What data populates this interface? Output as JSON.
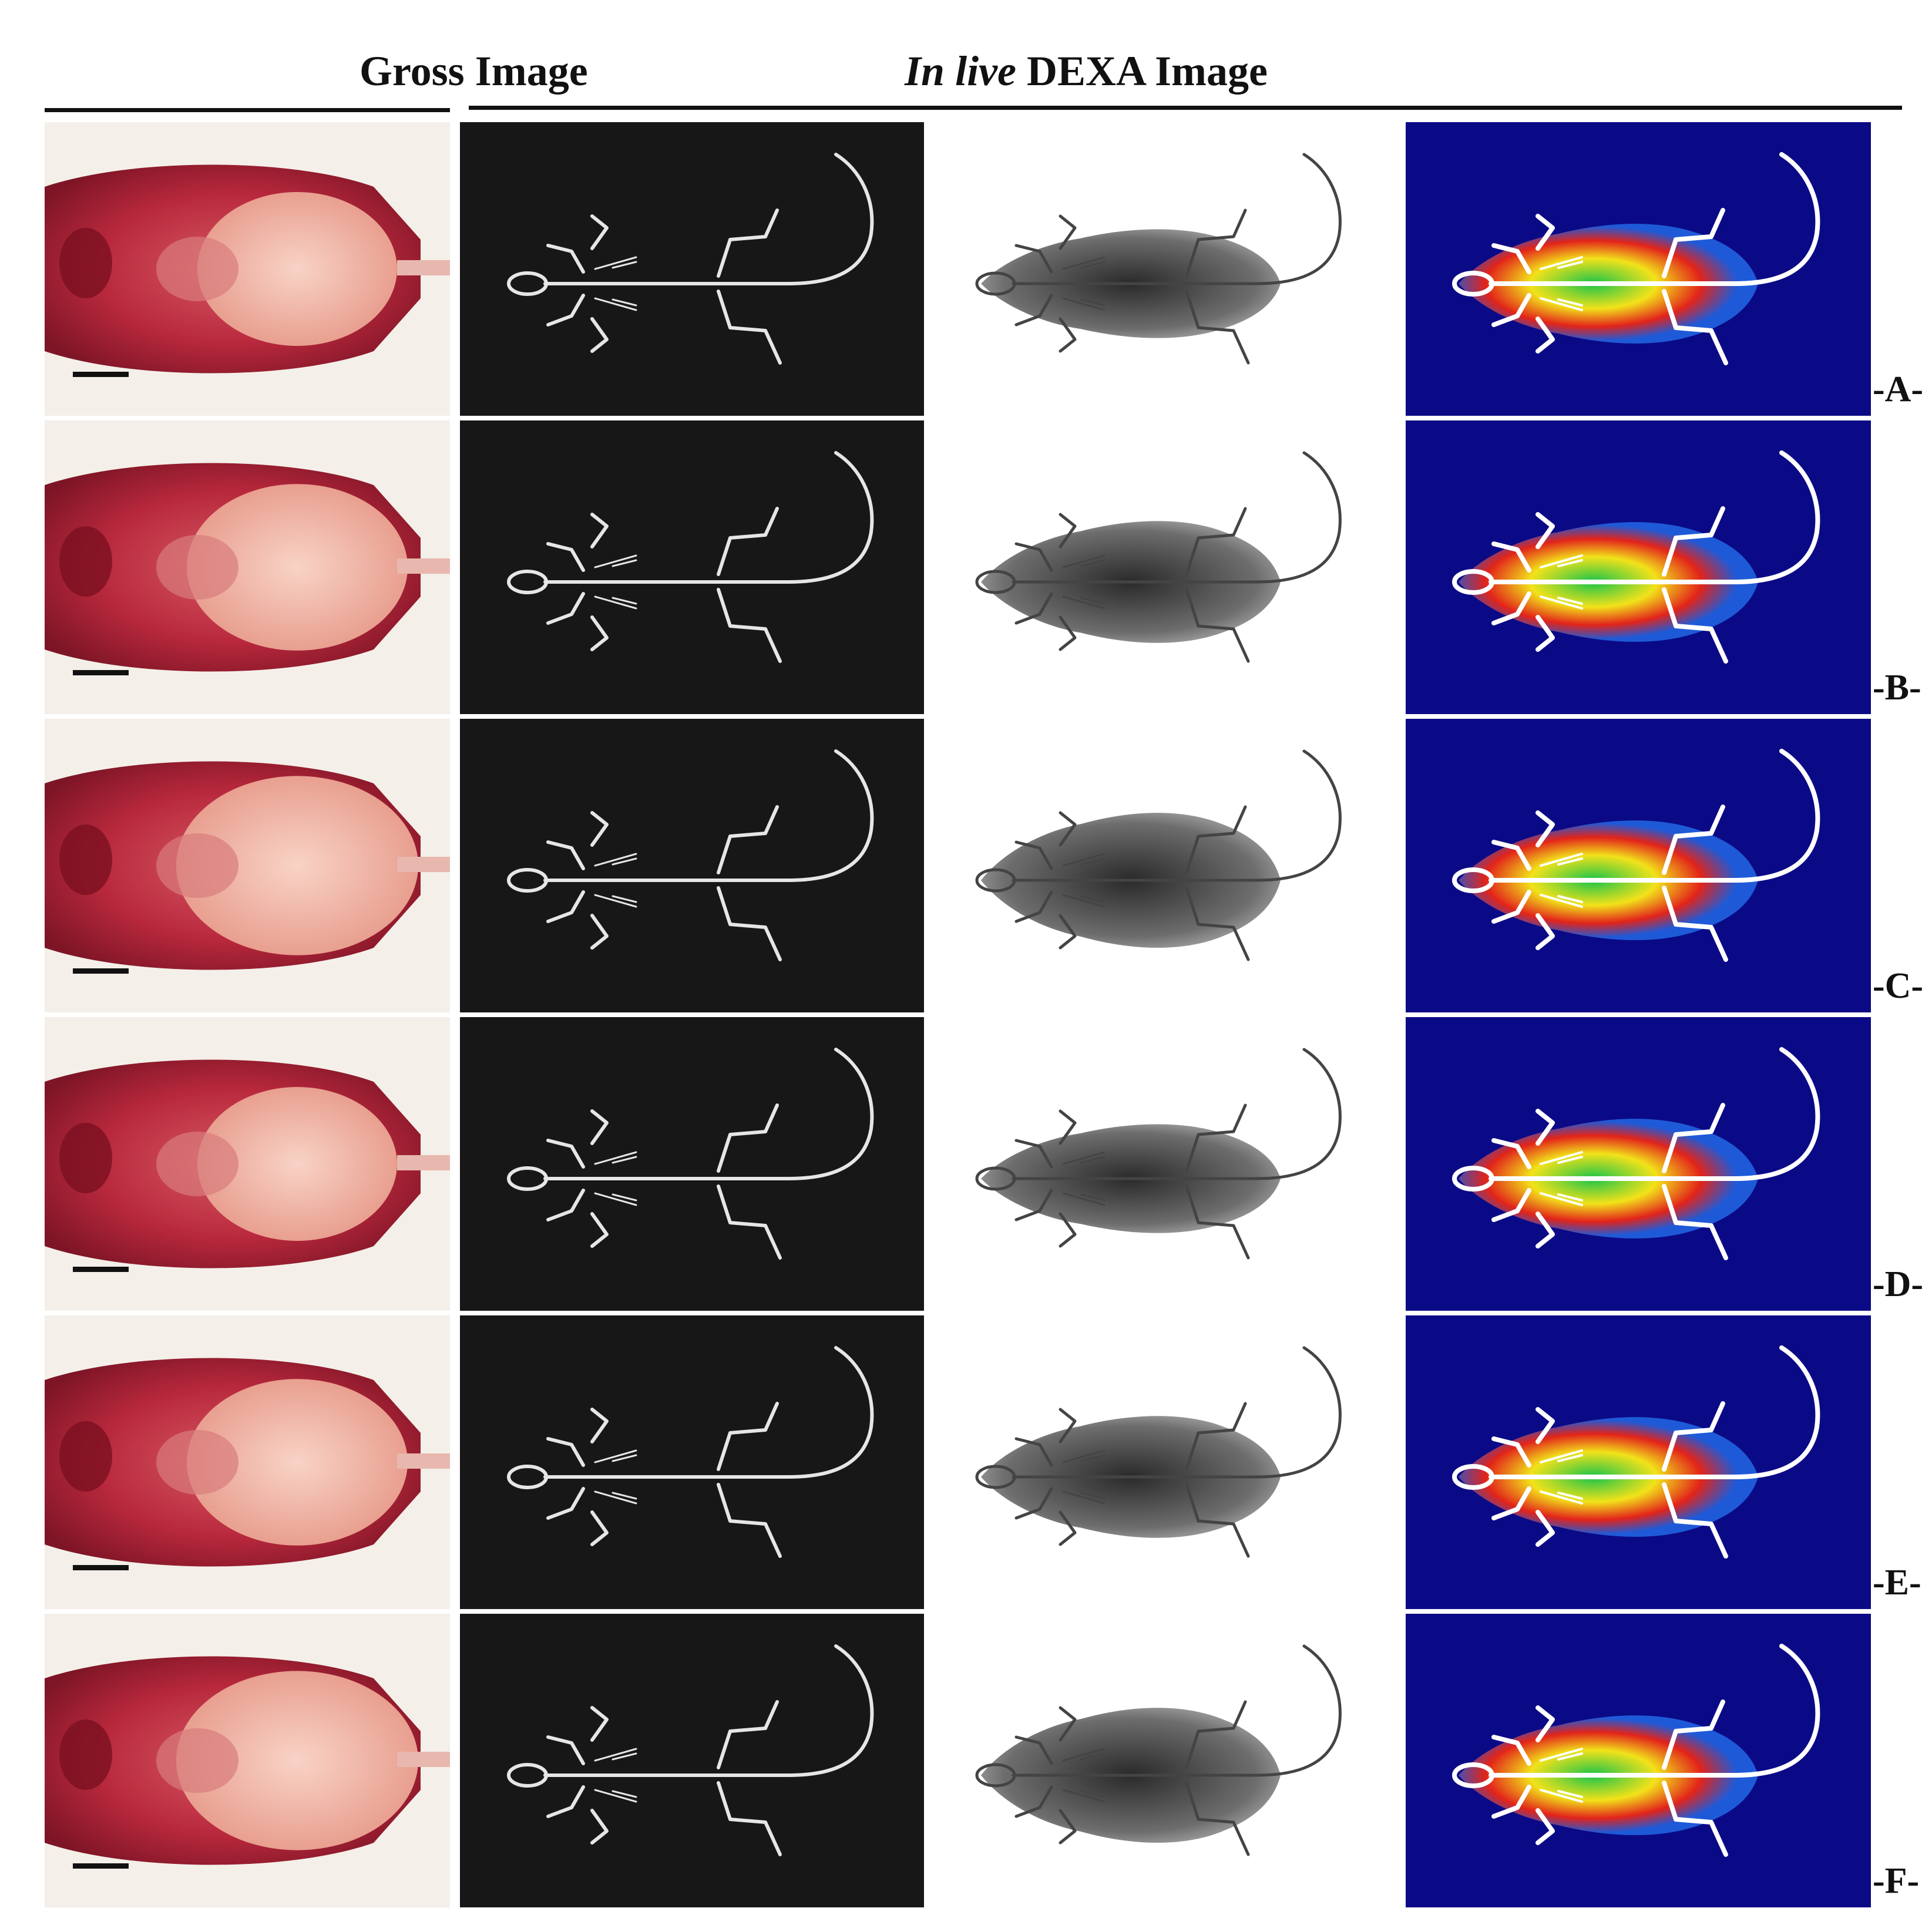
{
  "header": {
    "gross_title": "Gross Image",
    "dexa_title_italic": "In live",
    "dexa_title_rest": " DEXA Image"
  },
  "rows": [
    {
      "label": "-A-"
    },
    {
      "label": "-B-"
    },
    {
      "label": "-C-"
    },
    {
      "label": "-D-"
    },
    {
      "label": "-E-"
    },
    {
      "label": "-F-"
    }
  ],
  "colors": {
    "xray_background": "#171717",
    "pseudocolor_background": "#0b0a86",
    "tissue": "#c8344a",
    "fat_pad": "#f0b7a4"
  }
}
